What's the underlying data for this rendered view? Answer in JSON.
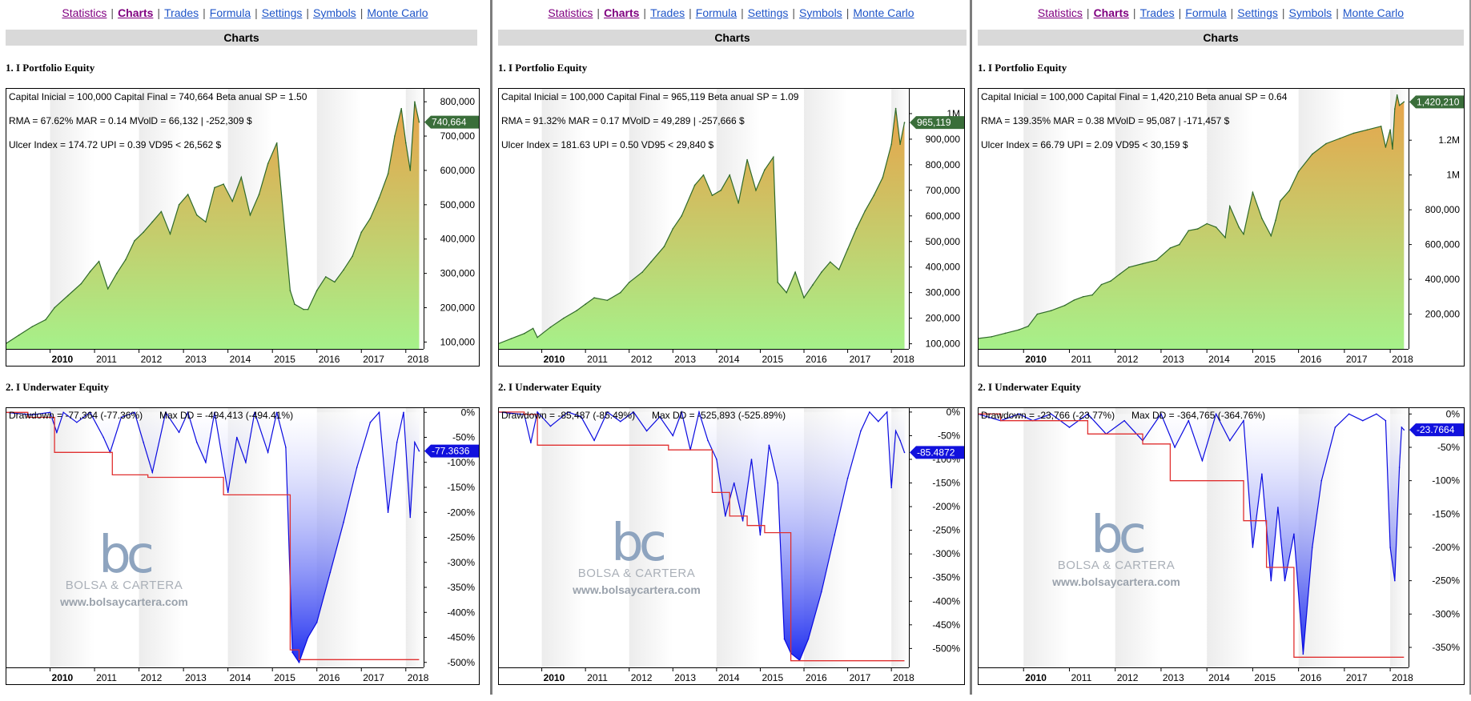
{
  "nav": {
    "items": [
      "Statistics",
      "Charts",
      "Trades",
      "Formula",
      "Settings",
      "Symbols",
      "Monte Carlo"
    ],
    "active": "Charts"
  },
  "header": {
    "title": "Charts"
  },
  "sections": {
    "equity_title": "1. I Portfolio Equity",
    "underwater_title": "2. I Underwater Equity"
  },
  "watermark": {
    "mark": "bc",
    "name": "BOLSA & CARTERA",
    "url": "www.bolsaycartera.com"
  },
  "colors": {
    "equity_top": "#e8a34a",
    "equity_bottom": "#a6f18a",
    "equity_line": "#2f6a2a",
    "dd_fill": "#1f2ef0",
    "dd_line": "#0a0ae0",
    "maxdd_line": "#e03030",
    "eq_marker": "#3a6e3a",
    "dd_marker": "#1111dd"
  },
  "chart_data": [
    {
      "type": "area",
      "title": "1. I Portfolio Equity",
      "stats": [
        "Capital Inicial = 100,000  Capital Final = 740,664  Beta anual SP = 1.50",
        "RMA = 67.62%  MAR = 0.14  MVolD = 66,132 | -252,309 $",
        "Ulcer Index = 174.72  UPI = 0.39  VD95 < 26,562 $"
      ],
      "x_ticks": [
        "2010",
        "2011",
        "2012",
        "2013",
        "2014",
        "2015",
        "2016",
        "2017",
        "2018"
      ],
      "xlim": [
        2009.0,
        2018.4
      ],
      "ylim": [
        80000,
        840000
      ],
      "y_ticks": [
        100000,
        200000,
        300000,
        400000,
        500000,
        600000,
        700000,
        800000
      ],
      "y_tick_labels": [
        "100,000",
        "200,000",
        "300,000",
        "400,000",
        "500,000",
        "600,000",
        "700,000",
        "800,000"
      ],
      "last_value_label": "740,664",
      "last_value": 740664,
      "x": [
        2009.0,
        2009.3,
        2009.6,
        2009.9,
        2010.1,
        2010.4,
        2010.7,
        2010.9,
        2011.1,
        2011.3,
        2011.5,
        2011.7,
        2011.9,
        2012.1,
        2012.3,
        2012.5,
        2012.7,
        2012.9,
        2013.1,
        2013.3,
        2013.5,
        2013.7,
        2013.9,
        2014.1,
        2014.3,
        2014.5,
        2014.7,
        2014.9,
        2015.1,
        2015.4,
        2015.5,
        2015.7,
        2015.8,
        2016.0,
        2016.2,
        2016.4,
        2016.6,
        2016.8,
        2017.0,
        2017.2,
        2017.4,
        2017.6,
        2017.75,
        2017.9,
        2018.0,
        2018.1,
        2018.2,
        2018.3
      ],
      "y": [
        95000,
        120000,
        145000,
        165000,
        200000,
        235000,
        270000,
        305000,
        335000,
        255000,
        300000,
        340000,
        395000,
        420000,
        450000,
        480000,
        415000,
        500000,
        530000,
        470000,
        450000,
        550000,
        560000,
        510000,
        580000,
        470000,
        530000,
        620000,
        680000,
        250000,
        210000,
        195000,
        195000,
        250000,
        290000,
        275000,
        310000,
        350000,
        420000,
        460000,
        520000,
        590000,
        700000,
        780000,
        680000,
        600000,
        800000,
        740664
      ]
    },
    {
      "type": "area",
      "title": "2. I Underwater Equity",
      "stats": [
        "Drawdown = -77,364 (-77.36%)",
        "Max DD = -494,413 (-494.41%)"
      ],
      "x_ticks": [
        "2010",
        "2011",
        "2012",
        "2013",
        "2014",
        "2015",
        "2016",
        "2017",
        "2018"
      ],
      "xlim": [
        2009.0,
        2018.4
      ],
      "ylim": [
        -510,
        10
      ],
      "y_ticks": [
        0,
        -50,
        -100,
        -150,
        -200,
        -250,
        -300,
        -350,
        -400,
        -450,
        -500
      ],
      "y_tick_labels": [
        "0%",
        "-50%",
        "-100%",
        "-150%",
        "-200%",
        "-250%",
        "-300%",
        "-350%",
        "-400%",
        "-450%",
        "-500%"
      ],
      "last_value_label": "-77.3636",
      "last_value": -77.3636,
      "x": [
        2009.0,
        2009.6,
        2010.0,
        2010.15,
        2010.3,
        2010.6,
        2010.9,
        2011.2,
        2011.35,
        2011.6,
        2011.9,
        2012.1,
        2012.3,
        2012.6,
        2012.9,
        2013.1,
        2013.3,
        2013.5,
        2013.7,
        2014.0,
        2014.2,
        2014.4,
        2014.6,
        2014.9,
        2015.1,
        2015.3,
        2015.45,
        2015.6,
        2015.8,
        2016.0,
        2016.3,
        2016.6,
        2016.9,
        2017.2,
        2017.4,
        2017.6,
        2017.8,
        2017.95,
        2018.1,
        2018.2,
        2018.3
      ],
      "y": [
        0,
        -5,
        0,
        -40,
        0,
        -20,
        0,
        -50,
        -80,
        -10,
        0,
        -60,
        -120,
        0,
        -40,
        0,
        -60,
        -100,
        0,
        -160,
        -50,
        -100,
        0,
        -80,
        0,
        -70,
        -480,
        -500,
        -450,
        -420,
        -320,
        -220,
        -110,
        -20,
        0,
        -200,
        -60,
        0,
        -210,
        -60,
        -77.36
      ],
      "max_dd_x": [
        2009.0,
        2009.5,
        2009.5,
        2010.1,
        2010.1,
        2011.4,
        2011.4,
        2012.2,
        2012.2,
        2013.9,
        2013.9,
        2015.4,
        2015.4,
        2015.6,
        2015.6,
        2018.3
      ],
      "max_dd_y": [
        0,
        0,
        -10,
        -10,
        -80,
        -80,
        -125,
        -125,
        -130,
        -130,
        -165,
        -165,
        -475,
        -475,
        -494.41,
        -494.41
      ]
    },
    {
      "type": "area",
      "title": "1. I Portfolio Equity",
      "stats": [
        "Capital Inicial = 100,000  Capital Final = 965,119  Beta anual SP = 1.09",
        "RMA = 91.32%  MAR = 0.17  MVolD = 49,289 | -257,666 $",
        "Ulcer Index = 181.63  UPI = 0.50  VD95 < 29,840 $"
      ],
      "x_ticks": [
        "2010",
        "2011",
        "2012",
        "2013",
        "2014",
        "2015",
        "2016",
        "2017",
        "2018"
      ],
      "xlim": [
        2009.0,
        2018.4
      ],
      "ylim": [
        80000,
        1100000
      ],
      "y_ticks": [
        100000,
        200000,
        300000,
        400000,
        500000,
        600000,
        700000,
        800000,
        900000,
        1000000
      ],
      "y_tick_labels": [
        "100,000",
        "200,000",
        "300,000",
        "400,000",
        "500,000",
        "600,000",
        "700,000",
        "800,000",
        "900,000",
        "1M"
      ],
      "last_value_label": "965,119",
      "last_value": 965119,
      "x": [
        2009.0,
        2009.3,
        2009.6,
        2009.8,
        2009.9,
        2010.2,
        2010.5,
        2010.8,
        2011.0,
        2011.2,
        2011.5,
        2011.8,
        2012.0,
        2012.3,
        2012.5,
        2012.8,
        2013.0,
        2013.2,
        2013.5,
        2013.7,
        2013.9,
        2014.1,
        2014.3,
        2014.5,
        2014.7,
        2014.9,
        2015.1,
        2015.3,
        2015.4,
        2015.6,
        2015.8,
        2016.0,
        2016.2,
        2016.4,
        2016.6,
        2016.8,
        2017.0,
        2017.2,
        2017.4,
        2017.6,
        2017.8,
        2018.0,
        2018.1,
        2018.2,
        2018.3
      ],
      "y": [
        100000,
        120000,
        140000,
        160000,
        125000,
        165000,
        200000,
        230000,
        255000,
        280000,
        270000,
        300000,
        340000,
        380000,
        420000,
        480000,
        550000,
        600000,
        720000,
        760000,
        680000,
        700000,
        760000,
        650000,
        820000,
        700000,
        780000,
        830000,
        340000,
        300000,
        380000,
        280000,
        330000,
        380000,
        420000,
        390000,
        470000,
        550000,
        620000,
        680000,
        750000,
        880000,
        1020000,
        880000,
        965119
      ]
    },
    {
      "type": "area",
      "title": "2. I Underwater Equity",
      "stats": [
        "Drawdown = -85,487 (-85.49%)",
        "Max DD = -525,893 (-525.89%)"
      ],
      "x_ticks": [
        "2010",
        "2011",
        "2012",
        "2013",
        "2014",
        "2015",
        "2016",
        "2017",
        "2018"
      ],
      "xlim": [
        2009.0,
        2018.4
      ],
      "ylim": [
        -540,
        10
      ],
      "y_ticks": [
        0,
        -50,
        -100,
        -150,
        -200,
        -250,
        -300,
        -350,
        -400,
        -450,
        -500
      ],
      "y_tick_labels": [
        "0%",
        "-50%",
        "-100%",
        "-150%",
        "-200%",
        "-250%",
        "-300%",
        "-350%",
        "-400%",
        "-450%",
        "-500%"
      ],
      "last_value_label": "-85.4872",
      "last_value": -85.4872,
      "x": [
        2009.0,
        2009.6,
        2009.75,
        2009.9,
        2010.2,
        2010.6,
        2010.9,
        2011.2,
        2011.5,
        2011.8,
        2012.1,
        2012.4,
        2012.7,
        2013.0,
        2013.2,
        2013.4,
        2013.6,
        2013.8,
        2014.0,
        2014.2,
        2014.4,
        2014.6,
        2014.8,
        2015.0,
        2015.2,
        2015.4,
        2015.55,
        2015.7,
        2015.9,
        2016.1,
        2016.4,
        2016.7,
        2017.0,
        2017.3,
        2017.5,
        2017.7,
        2017.9,
        2018.0,
        2018.1,
        2018.2,
        2018.3
      ],
      "y": [
        0,
        -5,
        -65,
        0,
        -30,
        0,
        -10,
        -60,
        0,
        -20,
        0,
        -40,
        -10,
        -50,
        0,
        -80,
        0,
        -60,
        -100,
        -220,
        -150,
        -230,
        -100,
        -260,
        -70,
        -150,
        -480,
        -510,
        -525,
        -480,
        -380,
        -260,
        -140,
        -40,
        0,
        -20,
        0,
        -160,
        -40,
        -60,
        -85.49
      ],
      "max_dd_x": [
        2009.0,
        2009.6,
        2009.6,
        2009.9,
        2009.9,
        2012.9,
        2012.9,
        2013.9,
        2013.9,
        2014.3,
        2014.3,
        2014.7,
        2014.7,
        2015.1,
        2015.1,
        2015.7,
        2015.7,
        2018.3
      ],
      "max_dd_y": [
        0,
        0,
        -5,
        -5,
        -70,
        -70,
        -80,
        -80,
        -170,
        -170,
        -220,
        -220,
        -240,
        -240,
        -255,
        -255,
        -525.89,
        -525.89
      ]
    },
    {
      "type": "area",
      "title": "1. I Portfolio Equity",
      "stats": [
        "Capital Inicial = 100,000  Capital Final = 1,420,210  Beta anual SP = 0.64",
        "RMA = 139.35%  MAR = 0.38  MVolD = 95,087 | -171,457 $",
        "Ulcer Index = 66.79  UPI = 2.09  VD95 < 30,159 $"
      ],
      "x_ticks": [
        "2010",
        "2011",
        "2012",
        "2013",
        "2014",
        "2015",
        "2016",
        "2017",
        "2018"
      ],
      "xlim": [
        2009.0,
        2018.4
      ],
      "ylim": [
        0,
        1500000
      ],
      "y_ticks": [
        200000,
        400000,
        600000,
        800000,
        1000000,
        1200000
      ],
      "y_tick_labels": [
        "200,000",
        "400,000",
        "600,000",
        "800,000",
        "1M",
        "1.2M"
      ],
      "last_value_label": "1,420,210",
      "last_value": 1420210,
      "x": [
        2009.0,
        2009.3,
        2009.6,
        2009.9,
        2010.1,
        2010.3,
        2010.6,
        2010.9,
        2011.1,
        2011.3,
        2011.5,
        2011.7,
        2011.9,
        2012.1,
        2012.3,
        2012.6,
        2012.9,
        2013.2,
        2013.4,
        2013.6,
        2013.8,
        2014.0,
        2014.2,
        2014.4,
        2014.5,
        2014.7,
        2014.8,
        2015.0,
        2015.2,
        2015.4,
        2015.5,
        2015.6,
        2015.8,
        2016.0,
        2016.3,
        2016.6,
        2016.9,
        2017.2,
        2017.5,
        2017.8,
        2017.9,
        2018.0,
        2018.05,
        2018.1,
        2018.15,
        2018.2,
        2018.3
      ],
      "y": [
        60000,
        70000,
        90000,
        110000,
        130000,
        200000,
        220000,
        250000,
        280000,
        300000,
        310000,
        370000,
        390000,
        430000,
        470000,
        490000,
        510000,
        580000,
        600000,
        680000,
        690000,
        720000,
        700000,
        640000,
        820000,
        700000,
        660000,
        900000,
        750000,
        650000,
        740000,
        850000,
        910000,
        1020000,
        1120000,
        1180000,
        1210000,
        1240000,
        1260000,
        1280000,
        1160000,
        1260000,
        1150000,
        1380000,
        1460000,
        1400000,
        1420210
      ]
    },
    {
      "type": "area",
      "title": "2. I Underwater Equity",
      "stats": [
        "Drawdown = -23,766 (-23.77%)",
        "Max DD = -364,765 (-364.76%)"
      ],
      "x_ticks": [
        "2010",
        "2011",
        "2012",
        "2013",
        "2014",
        "2015",
        "2016",
        "2017",
        "2018"
      ],
      "xlim": [
        2009.0,
        2018.4
      ],
      "ylim": [
        -380,
        10
      ],
      "y_ticks": [
        0,
        -50,
        -100,
        -150,
        -200,
        -250,
        -300,
        -350
      ],
      "y_tick_labels": [
        "0%",
        "-50%",
        "-100%",
        "-150%",
        "-200%",
        "-250%",
        "-300%",
        "-350%"
      ],
      "last_value_label": "-23.7664",
      "last_value": -23.7664,
      "x": [
        2009.0,
        2009.5,
        2009.9,
        2010.2,
        2010.6,
        2011.0,
        2011.4,
        2011.8,
        2012.2,
        2012.6,
        2013.0,
        2013.3,
        2013.6,
        2013.9,
        2014.2,
        2014.5,
        2014.8,
        2015.0,
        2015.2,
        2015.4,
        2015.55,
        2015.7,
        2015.9,
        2016.1,
        2016.3,
        2016.5,
        2016.8,
        2017.1,
        2017.4,
        2017.7,
        2017.9,
        2018.0,
        2018.1,
        2018.2,
        2018.25,
        2018.3
      ],
      "y": [
        0,
        -10,
        0,
        -10,
        0,
        -20,
        0,
        -30,
        -10,
        -40,
        0,
        -50,
        -10,
        -70,
        0,
        -40,
        -10,
        -200,
        -90,
        -250,
        -140,
        -250,
        -180,
        -360,
        -200,
        -100,
        -20,
        0,
        -10,
        0,
        -10,
        -200,
        -250,
        -80,
        -20,
        -23.77
      ],
      "max_dd_x": [
        2009.0,
        2009.5,
        2009.5,
        2011.4,
        2011.4,
        2012.6,
        2012.6,
        2013.2,
        2013.2,
        2014.8,
        2014.8,
        2015.3,
        2015.3,
        2015.9,
        2015.9,
        2018.3
      ],
      "max_dd_y": [
        0,
        0,
        -10,
        -10,
        -30,
        -30,
        -45,
        -45,
        -100,
        -100,
        -160,
        -160,
        -230,
        -230,
        -364.76,
        -364.76
      ]
    }
  ]
}
